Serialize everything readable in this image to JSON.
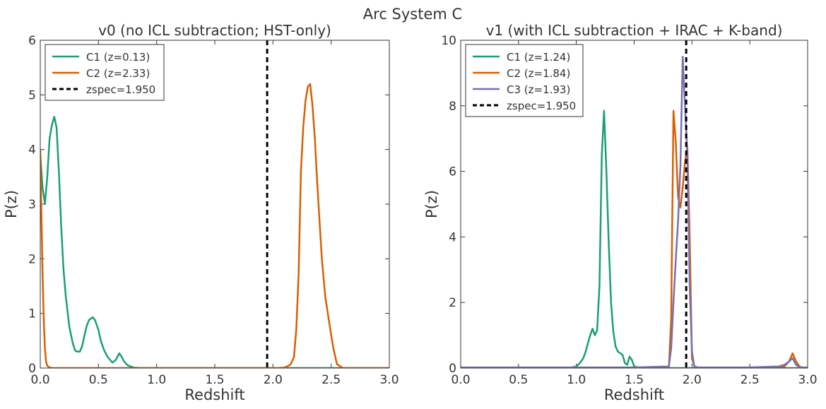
{
  "figure": {
    "suptitle": "Arc System C"
  },
  "chart_data": [
    {
      "type": "line",
      "title": "v0 (no ICL subtraction; HST-only)",
      "xlabel": "Redshift",
      "ylabel": "P(z)",
      "xlim": [
        0.0,
        3.0
      ],
      "ylim": [
        0,
        6
      ],
      "xticks": [
        "0.0",
        "0.5",
        "1.0",
        "1.5",
        "2.0",
        "2.5",
        "3.0"
      ],
      "yticks": [
        "0",
        "1",
        "2",
        "3",
        "4",
        "5",
        "6"
      ],
      "grid": false,
      "legend": {
        "location": "top-left",
        "entries": [
          "C1 (z=0.13)",
          "C2 (z=2.33)",
          "zspec=1.950"
        ]
      },
      "series": [
        {
          "name": "C1 (z=0.13)",
          "color": "#1b9e77",
          "x": [
            0.0,
            0.02,
            0.04,
            0.06,
            0.08,
            0.1,
            0.12,
            0.14,
            0.16,
            0.18,
            0.2,
            0.22,
            0.25,
            0.28,
            0.3,
            0.32,
            0.34,
            0.36,
            0.38,
            0.4,
            0.42,
            0.45,
            0.47,
            0.5,
            0.52,
            0.55,
            0.58,
            0.62,
            0.65,
            0.68,
            0.7,
            0.72,
            0.75,
            0.8,
            0.85,
            1.0,
            1.5,
            2.0,
            2.5,
            3.0
          ],
          "y": [
            3.9,
            3.3,
            3.0,
            3.5,
            4.2,
            4.45,
            4.6,
            4.4,
            3.6,
            2.6,
            1.8,
            1.3,
            0.75,
            0.45,
            0.32,
            0.3,
            0.3,
            0.4,
            0.6,
            0.78,
            0.88,
            0.93,
            0.88,
            0.7,
            0.5,
            0.32,
            0.2,
            0.1,
            0.15,
            0.27,
            0.2,
            0.12,
            0.05,
            0.01,
            0.0,
            0.0,
            0.0,
            0.0,
            0.0,
            0.0
          ]
        },
        {
          "name": "C2 (z=2.33)",
          "color": "#d95f02",
          "x": [
            0.0,
            0.01,
            0.02,
            0.03,
            0.04,
            0.05,
            0.06,
            0.08,
            0.1,
            0.5,
            1.0,
            1.5,
            2.0,
            2.05,
            2.1,
            2.15,
            2.18,
            2.2,
            2.22,
            2.24,
            2.26,
            2.28,
            2.3,
            2.32,
            2.34,
            2.36,
            2.38,
            2.4,
            2.42,
            2.45,
            2.5,
            2.52,
            2.55,
            2.6,
            3.0
          ],
          "y": [
            4.0,
            2.8,
            1.7,
            0.9,
            0.35,
            0.12,
            0.04,
            0.01,
            0.0,
            0.0,
            0.0,
            0.0,
            0.0,
            0.0,
            0.01,
            0.06,
            0.2,
            0.7,
            1.7,
            3.6,
            4.4,
            4.9,
            5.15,
            5.2,
            4.8,
            4.2,
            3.4,
            2.7,
            2.0,
            1.3,
            0.6,
            0.35,
            0.07,
            0.0,
            0.0
          ]
        }
      ],
      "vlines": [
        {
          "name": "zspec=1.950",
          "x": 1.95,
          "color": "#000000",
          "style": "dashed"
        }
      ]
    },
    {
      "type": "line",
      "title": "v1 (with ICL subtraction + IRAC + K-band)",
      "xlabel": "Redshift",
      "ylabel": "P(z)",
      "xlim": [
        0.0,
        3.0
      ],
      "ylim": [
        0,
        10
      ],
      "xticks": [
        "0.0",
        "0.5",
        "1.0",
        "1.5",
        "2.0",
        "2.5",
        "3.0"
      ],
      "yticks": [
        "0",
        "2",
        "4",
        "6",
        "8",
        "10"
      ],
      "grid": false,
      "legend": {
        "location": "top-left",
        "entries": [
          "C1 (z=1.24)",
          "C2 (z=1.84)",
          "C3 (z=1.93)",
          "zspec=1.950"
        ]
      },
      "series": [
        {
          "name": "C1 (z=1.24)",
          "color": "#1b9e77",
          "x": [
            0.0,
            0.9,
            0.95,
            1.0,
            1.03,
            1.06,
            1.08,
            1.1,
            1.12,
            1.14,
            1.16,
            1.18,
            1.2,
            1.22,
            1.24,
            1.26,
            1.28,
            1.3,
            1.32,
            1.34,
            1.36,
            1.38,
            1.4,
            1.42,
            1.44,
            1.46,
            1.48,
            1.5,
            1.55,
            1.6,
            2.0,
            2.5,
            3.0
          ],
          "y": [
            0.0,
            0.0,
            0.01,
            0.05,
            0.15,
            0.3,
            0.5,
            0.75,
            1.0,
            1.2,
            1.0,
            1.15,
            2.5,
            6.5,
            7.85,
            6.0,
            3.8,
            2.0,
            1.1,
            0.65,
            0.5,
            0.45,
            0.4,
            0.15,
            0.1,
            0.35,
            0.25,
            0.05,
            0.0,
            0.0,
            0.0,
            0.0,
            0.0
          ]
        },
        {
          "name": "C2 (z=1.84)",
          "color": "#d95f02",
          "x": [
            0.0,
            1.5,
            1.8,
            1.82,
            1.84,
            1.86,
            1.88,
            1.9,
            1.92,
            1.94,
            1.96,
            1.98,
            2.0,
            2.02,
            2.05,
            2.5,
            2.7,
            2.75,
            2.8,
            2.84,
            2.87,
            2.9,
            2.93,
            2.96,
            3.0
          ],
          "y": [
            0.0,
            0.0,
            0.0,
            1.5,
            7.85,
            6.9,
            5.2,
            4.9,
            5.5,
            6.3,
            6.75,
            4.0,
            0.3,
            0.05,
            0.0,
            0.0,
            0.0,
            0.01,
            0.05,
            0.2,
            0.45,
            0.2,
            0.05,
            0.0,
            0.0
          ]
        },
        {
          "name": "C3 (z=1.93)",
          "color": "#7570b3",
          "x": [
            0.0,
            1.5,
            1.8,
            1.82,
            1.84,
            1.86,
            1.88,
            1.9,
            1.92,
            1.94,
            1.96,
            1.98,
            2.0,
            2.02,
            2.05,
            2.5,
            2.75,
            2.8,
            2.84,
            2.87,
            2.9,
            2.93,
            2.96,
            3.0
          ],
          "y": [
            0.02,
            0.02,
            0.05,
            0.6,
            2.0,
            3.3,
            4.5,
            6.2,
            9.5,
            8.0,
            6.5,
            2.5,
            0.5,
            0.05,
            0.02,
            0.02,
            0.05,
            0.1,
            0.2,
            0.3,
            0.1,
            0.03,
            0.02,
            0.02
          ]
        }
      ],
      "vlines": [
        {
          "name": "zspec=1.950",
          "x": 1.95,
          "color": "#000000",
          "style": "dashed"
        }
      ]
    }
  ]
}
